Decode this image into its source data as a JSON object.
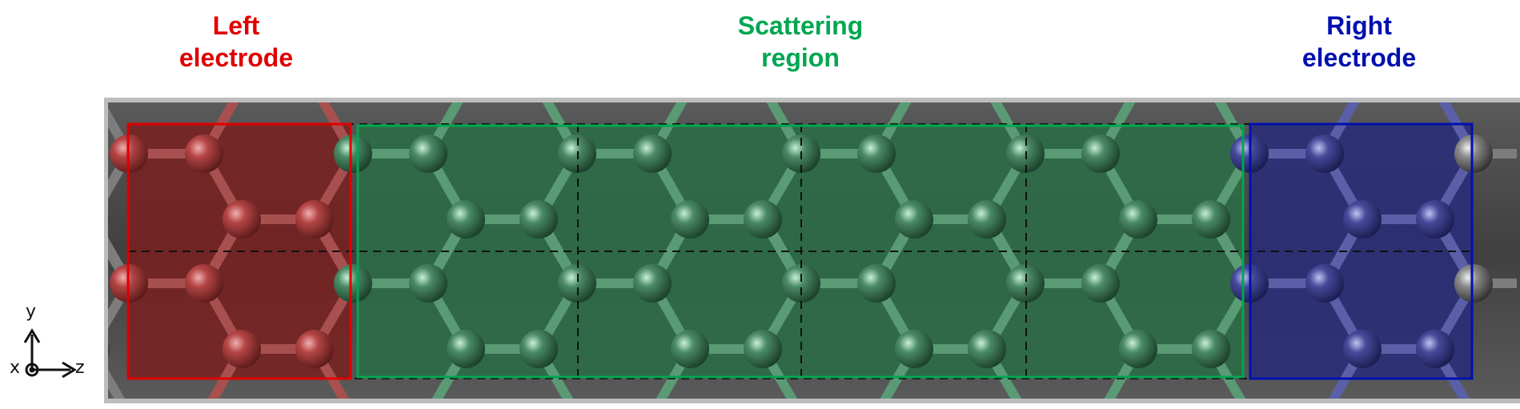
{
  "labels": {
    "left": {
      "line1": "Left",
      "line2": "electrode",
      "color": "#e00000"
    },
    "scatter": {
      "line1": "Scattering",
      "line2": "region",
      "color": "#00a651"
    },
    "right": {
      "line1": "Right",
      "line2": "electrode",
      "color": "#0010b0"
    }
  },
  "axes": {
    "y": "y",
    "x": "x",
    "z": "z"
  },
  "colors": {
    "background_slab": "#4a4a4a",
    "atom_left": "#b34a4a",
    "atom_scatter": "#4f8f6c",
    "atom_right": "#4a4fa0",
    "atom_gray": "#8a8a8a",
    "frame_left": "#e00000",
    "frame_scatter": "#00a651",
    "frame_right": "#0010b0"
  }
}
